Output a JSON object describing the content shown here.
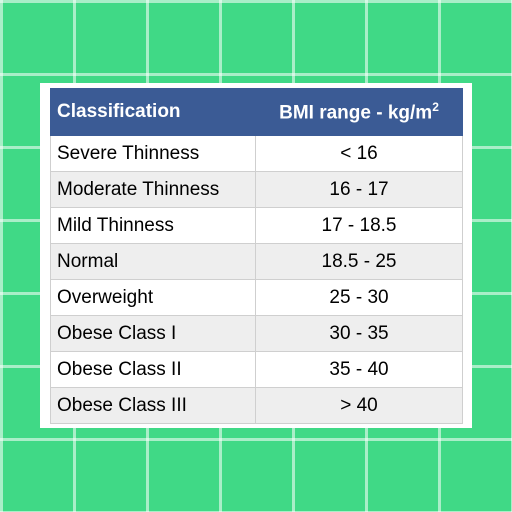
{
  "table": {
    "headers": {
      "classification": "Classification",
      "bmi_range": "BMI range - kg/m",
      "bmi_range_exponent": "2"
    },
    "rows": [
      {
        "classification": "Severe Thinness",
        "range": "< 16"
      },
      {
        "classification": "Moderate Thinness",
        "range": "16 - 17"
      },
      {
        "classification": "Mild Thinness",
        "range": "17 - 18.5"
      },
      {
        "classification": "Normal",
        "range": "18.5 - 25"
      },
      {
        "classification": "Overweight",
        "range": "25 - 30"
      },
      {
        "classification": "Obese Class I",
        "range": "30 - 35"
      },
      {
        "classification": "Obese Class II",
        "range": "35 - 40"
      },
      {
        "classification": "Obese Class III",
        "range": "> 40"
      }
    ]
  },
  "colors": {
    "background": "#40d986",
    "header": "#3b5b95",
    "row_alt": "#eeeeee"
  }
}
